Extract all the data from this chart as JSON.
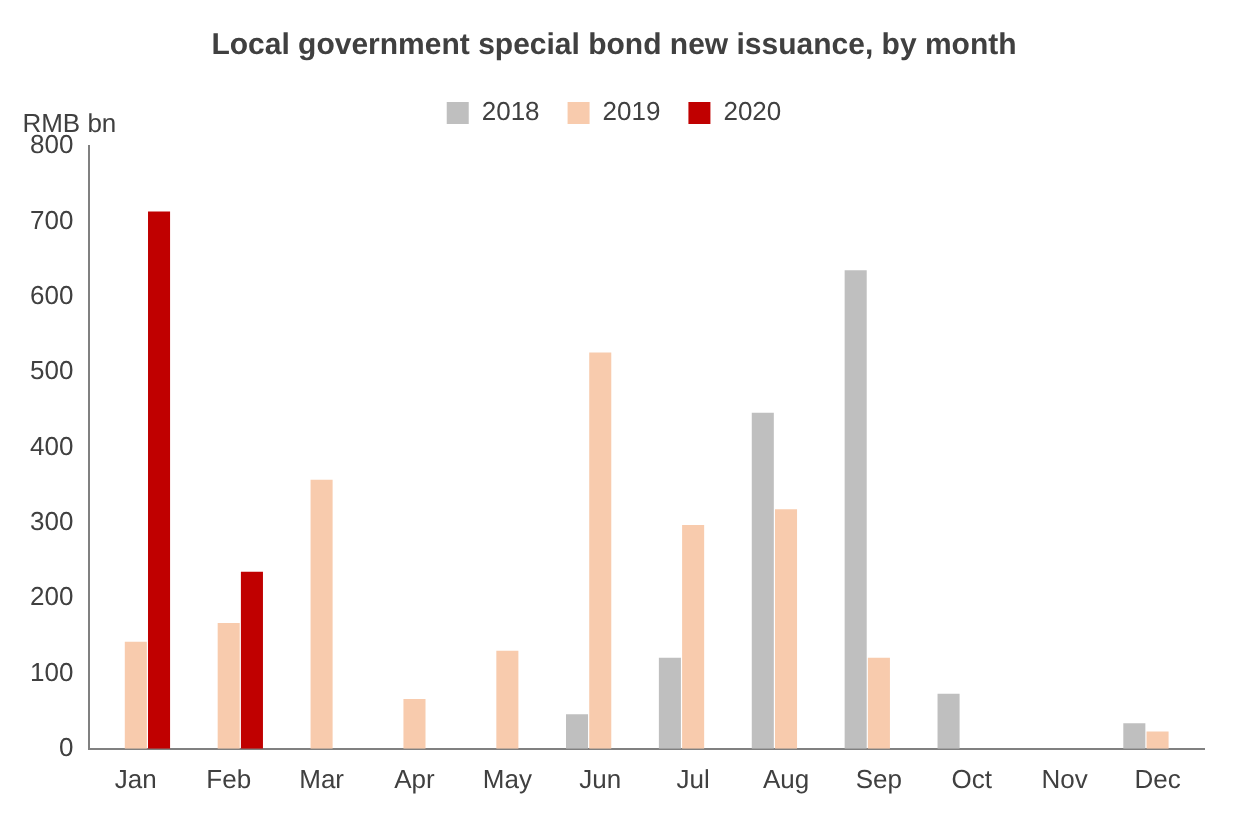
{
  "chart_data": {
    "type": "bar",
    "title": "Local government special bond new issuance, by month",
    "ylabel": "RMB bn",
    "categories": [
      "Jan",
      "Feb",
      "Mar",
      "Apr",
      "May",
      "Jun",
      "Jul",
      "Aug",
      "Sep",
      "Oct",
      "Nov",
      "Dec"
    ],
    "series": [
      {
        "name": "2018",
        "color": "#bfbfbf",
        "values": [
          0,
          0,
          0,
          0,
          0,
          46,
          121,
          446,
          635,
          73,
          0,
          34
        ]
      },
      {
        "name": "2019",
        "color": "#f8cbad",
        "values": [
          142,
          167,
          357,
          66,
          130,
          526,
          297,
          318,
          121,
          0,
          0,
          23
        ]
      },
      {
        "name": "2020",
        "color": "#c00000",
        "values": [
          713,
          235,
          null,
          null,
          null,
          null,
          null,
          null,
          null,
          null,
          null,
          null
        ]
      }
    ],
    "ylim": [
      0,
      800
    ],
    "yticks": [
      0,
      100,
      200,
      300,
      400,
      500,
      600,
      700,
      800
    ],
    "grid": false,
    "legend": "top"
  }
}
